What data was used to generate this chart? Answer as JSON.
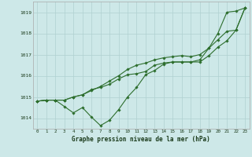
{
  "title": "Graphe pression niveau de la mer (hPa)",
  "background_color": "#cde8e8",
  "grid_color": "#b0d0d0",
  "line_color": "#2d6e2d",
  "x_ticks": [
    0,
    1,
    2,
    3,
    4,
    5,
    6,
    7,
    8,
    9,
    10,
    11,
    12,
    13,
    14,
    15,
    16,
    17,
    18,
    19,
    20,
    21,
    22,
    23
  ],
  "ylim": [
    1013.5,
    1019.5
  ],
  "y_ticks": [
    1014,
    1015,
    1016,
    1017,
    1018,
    1019
  ],
  "series1": [
    1014.8,
    1014.85,
    1014.85,
    1014.85,
    1015.0,
    1015.1,
    1015.3,
    1015.5,
    1015.75,
    1016.0,
    1016.3,
    1016.5,
    1016.6,
    1016.75,
    1016.85,
    1016.9,
    1016.95,
    1016.9,
    1017.0,
    1017.3,
    1018.0,
    1019.0,
    1019.05,
    1019.2
  ],
  "series2": [
    1014.8,
    1014.85,
    1014.85,
    1014.55,
    1014.25,
    1014.5,
    1014.05,
    1013.65,
    1013.9,
    1014.4,
    1015.0,
    1015.45,
    1016.05,
    1016.25,
    1016.55,
    1016.65,
    1016.65,
    1016.65,
    1016.65,
    1016.95,
    1017.35,
    1017.65,
    1018.15,
    1019.2
  ],
  "series3": [
    1014.8,
    1014.85,
    1014.85,
    1014.85,
    1015.0,
    1015.1,
    1015.35,
    1015.45,
    1015.6,
    1015.85,
    1016.05,
    1016.1,
    1016.2,
    1016.5,
    1016.6,
    1016.65,
    1016.65,
    1016.65,
    1016.75,
    1017.3,
    1017.7,
    1018.1,
    1018.15,
    1019.2
  ]
}
